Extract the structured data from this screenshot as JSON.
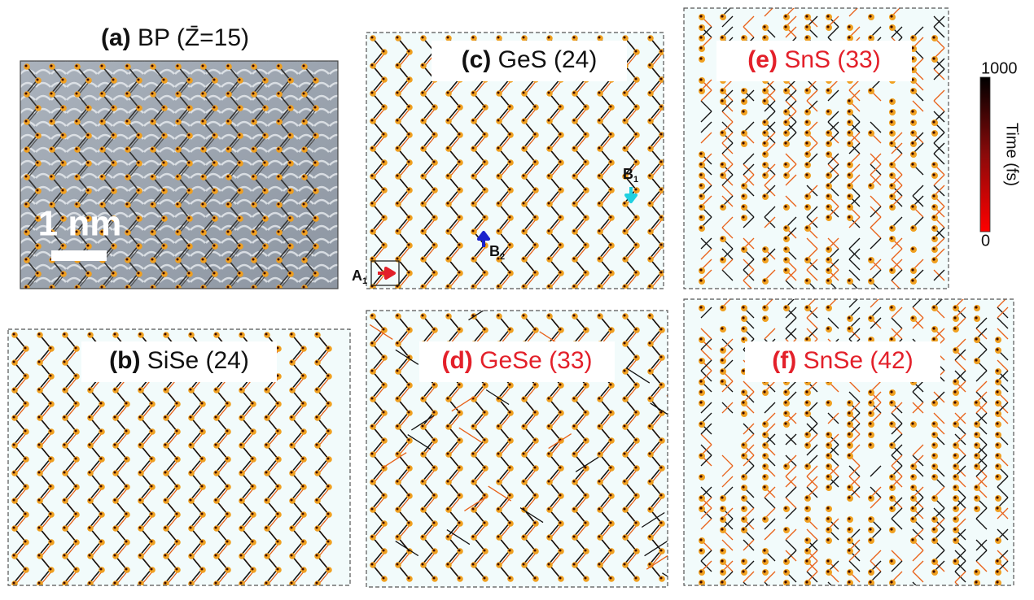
{
  "panels": [
    {
      "label": "(a)",
      "name": "BP (Z̄=15)",
      "color": "#111111"
    },
    {
      "label": "(b)",
      "name": "SiSe (24)",
      "color": "#111111"
    },
    {
      "label": "(c)",
      "name": "GeS (24)",
      "color": "#111111"
    },
    {
      "label": "(d)",
      "name": "GeSe (33)",
      "color": "#e3202a"
    },
    {
      "label": "(e)",
      "name": "SnS (33)",
      "color": "#e3202a"
    },
    {
      "label": "(f)",
      "name": "SnSe (42)",
      "color": "#e3202a"
    }
  ],
  "scale_bar": "1 nm",
  "colorbar": {
    "title": "Time (fs)",
    "max": "1000",
    "min": "0"
  },
  "markers": [
    {
      "letter": "A",
      "sub": "1"
    },
    {
      "letter": "B",
      "sub": "1"
    },
    {
      "letter": "B",
      "sub": "2"
    }
  ]
}
